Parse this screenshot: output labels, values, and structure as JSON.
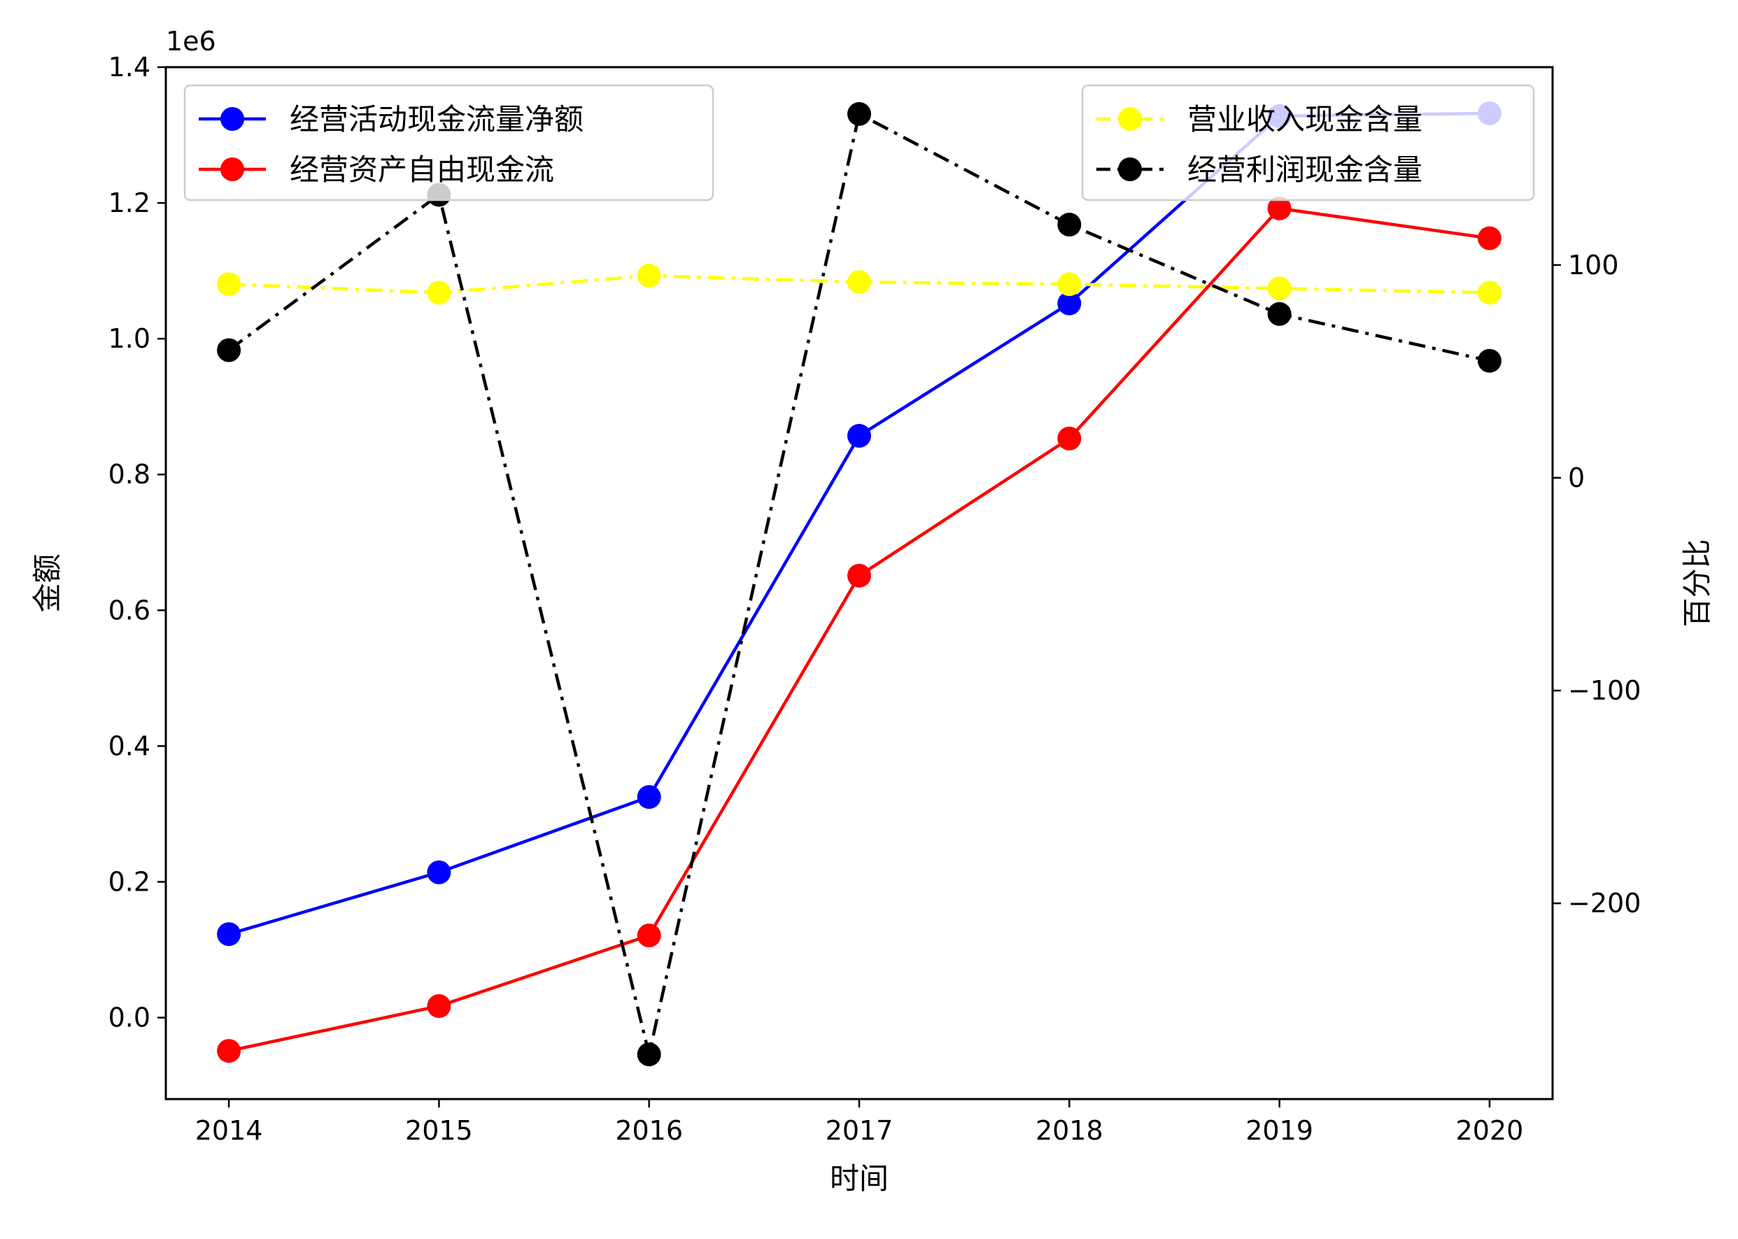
{
  "chart_data": {
    "type": "line",
    "x": [
      "2014",
      "2015",
      "2016",
      "2017",
      "2018",
      "2019",
      "2020"
    ],
    "xlabel": "时间",
    "left_axis": {
      "label": "金额",
      "offset_text": "1e6",
      "ylim": [
        -0.12,
        1.4
      ],
      "ticks": [
        0.0,
        0.2,
        0.4,
        0.6,
        0.8,
        1.0,
        1.2,
        1.4
      ],
      "tick_labels": [
        "0.0",
        "0.2",
        "0.4",
        "0.6",
        "0.8",
        "1.0",
        "1.2",
        "1.4"
      ]
    },
    "right_axis": {
      "label": "百分比",
      "ylim": [
        -292,
        193
      ],
      "ticks": [
        -200,
        -100,
        0,
        100
      ],
      "tick_labels": [
        "−200",
        "−100",
        "0",
        "100"
      ]
    },
    "series": [
      {
        "name": "经营活动现金流量净额",
        "axis": "left",
        "color": "#0000ff",
        "style": "solid",
        "values": [
          0.123,
          0.214,
          0.325,
          0.857,
          1.052,
          1.328,
          1.332
        ]
      },
      {
        "name": "经营资产自由现金流",
        "axis": "left",
        "color": "#ff0000",
        "style": "solid",
        "values": [
          -0.049,
          0.017,
          0.121,
          0.651,
          0.853,
          1.192,
          1.148
        ]
      },
      {
        "name": "营业收入现金含量",
        "axis": "right",
        "color": "#ffff00",
        "style": "dashdot",
        "values": [
          91,
          87,
          95,
          92,
          91,
          89,
          87
        ]
      },
      {
        "name": "经营利润现金含量",
        "axis": "right",
        "color": "#000000",
        "style": "dashdot",
        "values": [
          60,
          133,
          -271,
          171,
          119,
          77,
          55
        ]
      }
    ],
    "legends": [
      {
        "placement": "upper-left",
        "series": [
          0,
          1
        ]
      },
      {
        "placement": "upper-right",
        "series": [
          2,
          3
        ]
      }
    ],
    "grid": false
  }
}
